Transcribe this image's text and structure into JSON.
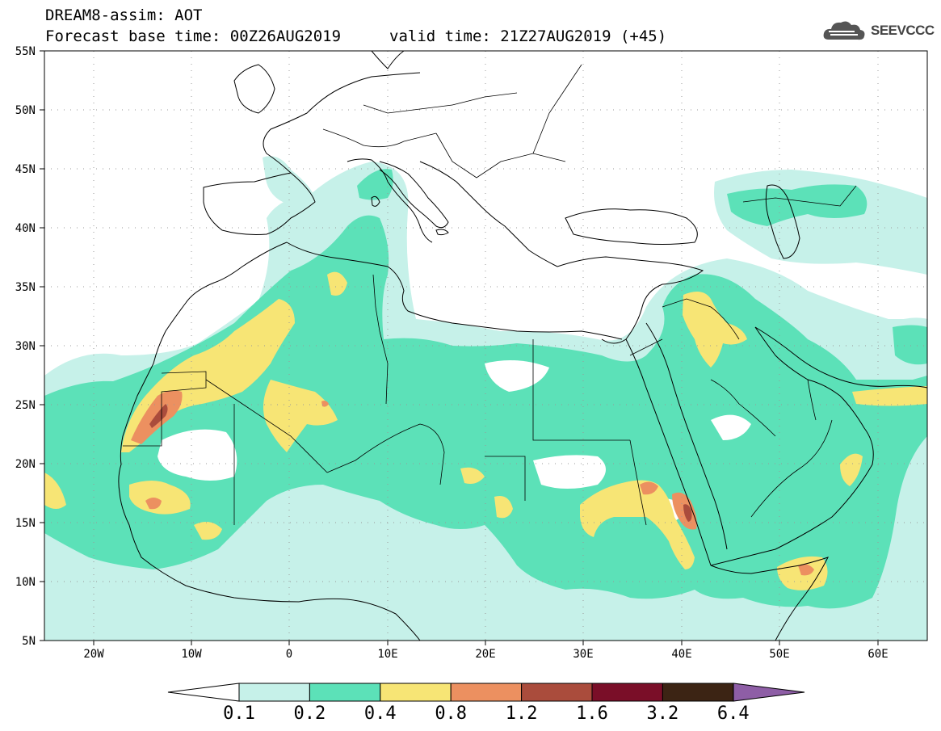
{
  "header": {
    "line1": "DREAM8-assim: AOT",
    "line2": "Forecast base time: 00Z26AUG2019",
    "valid": "valid time: 21Z27AUG2019 (+45)"
  },
  "logo": {
    "text": "SEEVCCC",
    "icon": "cloud-icon"
  },
  "map": {
    "variable": "AOT",
    "lon_range": [
      -25,
      65
    ],
    "lat_range": [
      5,
      55
    ],
    "lat_ticks": [
      "5N",
      "10N",
      "15N",
      "20N",
      "25N",
      "30N",
      "35N",
      "40N",
      "45N",
      "50N",
      "55N"
    ],
    "lon_ticks": [
      "20W",
      "10W",
      "0",
      "10E",
      "20E",
      "30E",
      "40E",
      "50E",
      "60E"
    ],
    "grid": "dotted"
  },
  "colorbar": {
    "levels": [
      "0.1",
      "0.2",
      "0.4",
      "0.8",
      "1.2",
      "1.6",
      "3.2",
      "6.4"
    ],
    "colors": [
      "#c6f1e9",
      "#5ce1b8",
      "#f7e575",
      "#ec9060",
      "#aa4c3c",
      "#7a0e28",
      "#3c2414",
      "#8e5ea6"
    ],
    "under_color": "#ffffff"
  },
  "chart_data": {
    "type": "heatmap",
    "title": "DREAM8-assim: AOT",
    "xlabel": "",
    "ylabel": "",
    "xlim": [
      -25,
      65
    ],
    "ylim": [
      5,
      55
    ],
    "dust_hotspots": [
      {
        "lon": -14,
        "lat": 24,
        "aot_class": "1.2"
      },
      {
        "lon": -13.5,
        "lat": 16.5,
        "aot_class": "1.2"
      },
      {
        "lon": 39.5,
        "lat": 16,
        "aot_class": "1.6"
      },
      {
        "lon": 36.5,
        "lat": 17.5,
        "aot_class": "1.2"
      },
      {
        "lon": 52.5,
        "lat": 11,
        "aot_class": "1.2"
      },
      {
        "lon": 3.5,
        "lat": 25,
        "aot_class": "1.2"
      }
    ]
  }
}
